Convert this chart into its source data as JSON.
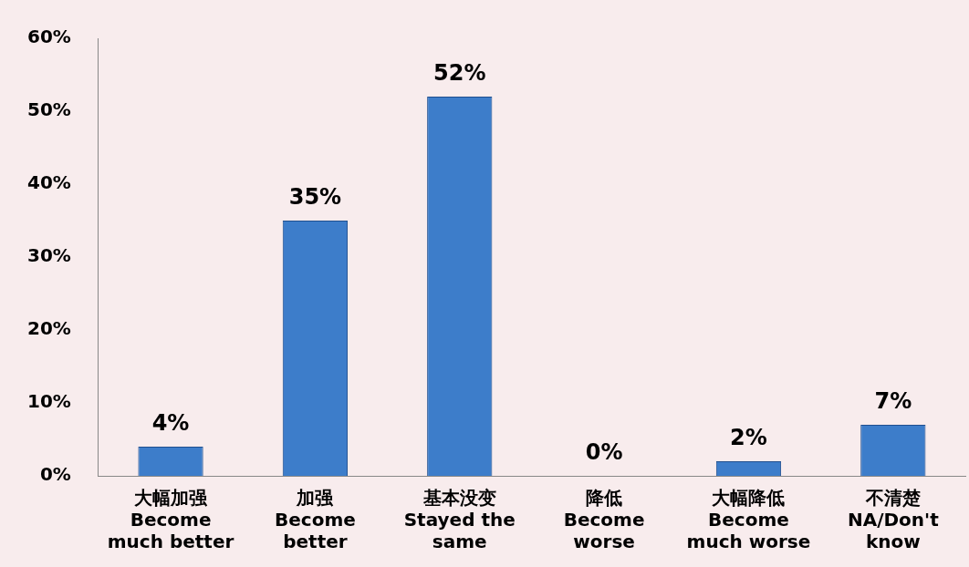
{
  "chart_data": {
    "type": "bar",
    "categories": [
      "大幅加强\nBecome\nmuch better",
      "加强\nBecome\nbetter",
      "基本没变\nStayed the\nsame",
      "降低\nBecome\nworse",
      "大幅降低\nBecome\nmuch worse",
      "不清楚\nNA/Don't\nknow"
    ],
    "values": [
      4,
      35,
      52,
      0,
      2,
      7
    ],
    "value_labels": [
      "4%",
      "35%",
      "52%",
      "0%",
      "2%",
      "7%"
    ],
    "color": "#3d7dca",
    "ylim": [
      0,
      60
    ],
    "yticks": [
      {
        "value": 0,
        "label": "0%"
      },
      {
        "value": 10,
        "label": "10%"
      },
      {
        "value": 20,
        "label": "20%"
      },
      {
        "value": 30,
        "label": "30%"
      },
      {
        "value": 40,
        "label": "40%"
      },
      {
        "value": 50,
        "label": "50%"
      },
      {
        "value": 60,
        "label": "60%"
      }
    ],
    "grid": false,
    "legend": false
  }
}
